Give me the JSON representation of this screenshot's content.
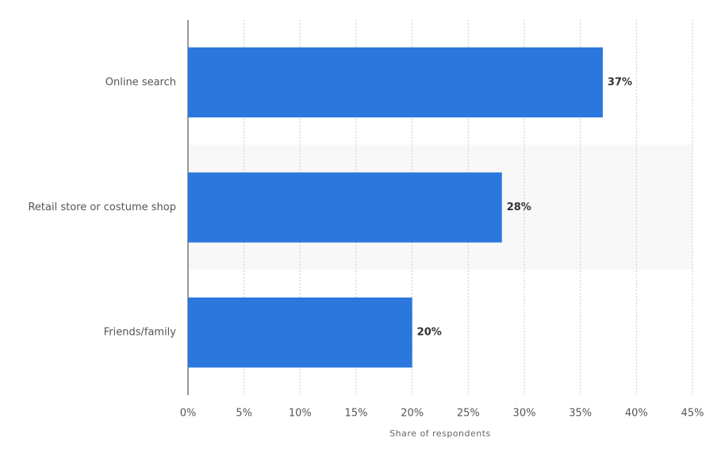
{
  "chart_data": {
    "type": "bar",
    "orientation": "horizontal",
    "x_label": "Share of respondents",
    "categories": [
      "Online search",
      "Retail store or costume shop",
      "Friends/family"
    ],
    "values": [
      37,
      28,
      20
    ],
    "value_labels": [
      "37%",
      "28%",
      "20%"
    ],
    "color": "#2b77dd",
    "xlim": [
      0,
      45
    ],
    "xticks": [
      {
        "value": 0,
        "label": "0%"
      },
      {
        "value": 5,
        "label": "5%"
      },
      {
        "value": 10,
        "label": "10%"
      },
      {
        "value": 15,
        "label": "15%"
      },
      {
        "value": 20,
        "label": "20%"
      },
      {
        "value": 25,
        "label": "25%"
      },
      {
        "value": 30,
        "label": "30%"
      },
      {
        "value": 35,
        "label": "35%"
      },
      {
        "value": 40,
        "label": "40%"
      },
      {
        "value": 45,
        "label": "45%"
      }
    ],
    "grid": true
  }
}
